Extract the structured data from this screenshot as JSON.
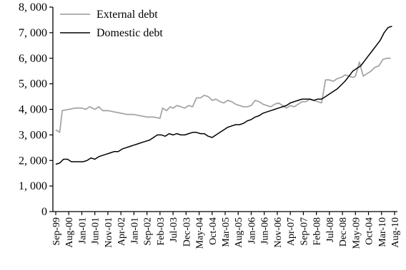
{
  "chart_data": {
    "type": "line",
    "title": "",
    "xlabel": "",
    "ylabel": "",
    "ylim": [
      0,
      8000
    ],
    "y_ticks": [
      "0",
      "1, 000",
      "2, 000",
      "3, 000",
      "4, 000",
      "5, 000",
      "6, 000",
      "7, 000",
      "8, 000"
    ],
    "x_ticks": [
      "Sep-99",
      "Aug-00",
      "Jan-01",
      "Jun-01",
      "Nov-01",
      "Apr-02",
      "Jan-01",
      "Sep-02",
      "Feb-03",
      "Jul-03",
      "Dec-03",
      "May-04",
      "Oct-04",
      "Mar-05",
      "Aug-05",
      "Jan-06",
      "Jun-06",
      "Nov-06",
      "Apr-07",
      "Sep-07",
      "Feb-08",
      "Jul-08",
      "Dec-08",
      "May-09",
      "Oct-04",
      "Mar-10",
      "Aug-10"
    ],
    "grid": false,
    "legend_position": "top-left",
    "series": [
      {
        "name": "External debt",
        "color": "#a6a6a6",
        "points": [
          [
            0,
            3200
          ],
          [
            0.3,
            3100
          ],
          [
            0.5,
            3950
          ],
          [
            1,
            4000
          ],
          [
            1.5,
            4050
          ],
          [
            2,
            4050
          ],
          [
            2.3,
            4000
          ],
          [
            2.6,
            4100
          ],
          [
            3,
            4000
          ],
          [
            3.3,
            4100
          ],
          [
            3.6,
            3950
          ],
          [
            4,
            3950
          ],
          [
            4.5,
            3900
          ],
          [
            5,
            3850
          ],
          [
            5.5,
            3800
          ],
          [
            6,
            3800
          ],
          [
            6.5,
            3750
          ],
          [
            7,
            3700
          ],
          [
            7.5,
            3700
          ],
          [
            8,
            3650
          ],
          [
            8.2,
            4050
          ],
          [
            8.5,
            3950
          ],
          [
            8.8,
            4100
          ],
          [
            9,
            4050
          ],
          [
            9.3,
            4150
          ],
          [
            9.6,
            4100
          ],
          [
            9.9,
            4050
          ],
          [
            10.2,
            4150
          ],
          [
            10.5,
            4100
          ],
          [
            10.8,
            4450
          ],
          [
            11.1,
            4450
          ],
          [
            11.4,
            4550
          ],
          [
            11.7,
            4500
          ],
          [
            12,
            4350
          ],
          [
            12.3,
            4400
          ],
          [
            12.6,
            4300
          ],
          [
            12.9,
            4250
          ],
          [
            13.2,
            4350
          ],
          [
            13.5,
            4300
          ],
          [
            13.8,
            4200
          ],
          [
            14.1,
            4150
          ],
          [
            14.4,
            4100
          ],
          [
            14.7,
            4100
          ],
          [
            15,
            4150
          ],
          [
            15.3,
            4350
          ],
          [
            15.6,
            4300
          ],
          [
            15.9,
            4200
          ],
          [
            16.2,
            4150
          ],
          [
            16.5,
            4100
          ],
          [
            16.8,
            4200
          ],
          [
            17.1,
            4250
          ],
          [
            17.4,
            4150
          ],
          [
            17.7,
            4050
          ],
          [
            18,
            4150
          ],
          [
            18.3,
            4100
          ],
          [
            18.6,
            4200
          ],
          [
            18.9,
            4300
          ],
          [
            19.2,
            4300
          ],
          [
            19.5,
            4400
          ],
          [
            19.8,
            4350
          ],
          [
            20.1,
            4300
          ],
          [
            20.4,
            4250
          ],
          [
            20.7,
            5150
          ],
          [
            21,
            5150
          ],
          [
            21.3,
            5100
          ],
          [
            21.6,
            5200
          ],
          [
            21.9,
            5250
          ],
          [
            22.2,
            5350
          ],
          [
            22.5,
            5300
          ],
          [
            22.8,
            5250
          ],
          [
            23,
            5300
          ],
          [
            23.3,
            5850
          ],
          [
            23.6,
            5300
          ],
          [
            23.9,
            5400
          ],
          [
            24.2,
            5500
          ],
          [
            24.5,
            5650
          ],
          [
            24.8,
            5700
          ],
          [
            25.1,
            5950
          ],
          [
            25.4,
            6000
          ],
          [
            25.7,
            6000
          ]
        ]
      },
      {
        "name": "Domestic debt",
        "color": "#000000",
        "points": [
          [
            0,
            1850
          ],
          [
            0.3,
            1900
          ],
          [
            0.6,
            2050
          ],
          [
            0.9,
            2050
          ],
          [
            1.2,
            1950
          ],
          [
            1.5,
            1950
          ],
          [
            1.8,
            1950
          ],
          [
            2.1,
            1950
          ],
          [
            2.4,
            2000
          ],
          [
            2.7,
            2100
          ],
          [
            3,
            2050
          ],
          [
            3.3,
            2150
          ],
          [
            3.6,
            2200
          ],
          [
            3.9,
            2250
          ],
          [
            4.2,
            2300
          ],
          [
            4.5,
            2350
          ],
          [
            4.8,
            2350
          ],
          [
            5.1,
            2450
          ],
          [
            5.4,
            2500
          ],
          [
            5.7,
            2550
          ],
          [
            6,
            2600
          ],
          [
            6.3,
            2650
          ],
          [
            6.6,
            2700
          ],
          [
            6.9,
            2750
          ],
          [
            7.2,
            2800
          ],
          [
            7.5,
            2900
          ],
          [
            7.8,
            3000
          ],
          [
            8.1,
            3000
          ],
          [
            8.4,
            2950
          ],
          [
            8.7,
            3050
          ],
          [
            9,
            3000
          ],
          [
            9.3,
            3050
          ],
          [
            9.6,
            3000
          ],
          [
            9.9,
            3000
          ],
          [
            10.2,
            3050
          ],
          [
            10.5,
            3100
          ],
          [
            10.8,
            3100
          ],
          [
            11.1,
            3050
          ],
          [
            11.4,
            3050
          ],
          [
            11.7,
            2950
          ],
          [
            12,
            2900
          ],
          [
            12.3,
            3000
          ],
          [
            12.6,
            3100
          ],
          [
            12.9,
            3200
          ],
          [
            13.2,
            3300
          ],
          [
            13.5,
            3350
          ],
          [
            13.8,
            3400
          ],
          [
            14.1,
            3400
          ],
          [
            14.4,
            3450
          ],
          [
            14.7,
            3550
          ],
          [
            15,
            3600
          ],
          [
            15.3,
            3700
          ],
          [
            15.6,
            3750
          ],
          [
            15.9,
            3850
          ],
          [
            16.2,
            3900
          ],
          [
            16.5,
            3950
          ],
          [
            16.8,
            4000
          ],
          [
            17.1,
            4050
          ],
          [
            17.4,
            4100
          ],
          [
            17.7,
            4150
          ],
          [
            18,
            4250
          ],
          [
            18.3,
            4300
          ],
          [
            18.6,
            4350
          ],
          [
            18.9,
            4400
          ],
          [
            19.2,
            4400
          ],
          [
            19.5,
            4400
          ],
          [
            19.8,
            4350
          ],
          [
            20.1,
            4400
          ],
          [
            20.4,
            4400
          ],
          [
            20.7,
            4500
          ],
          [
            21,
            4600
          ],
          [
            21.3,
            4700
          ],
          [
            21.6,
            4800
          ],
          [
            21.9,
            4950
          ],
          [
            22.2,
            5100
          ],
          [
            22.5,
            5300
          ],
          [
            22.8,
            5500
          ],
          [
            23.1,
            5600
          ],
          [
            23.4,
            5700
          ],
          [
            23.7,
            5900
          ],
          [
            24,
            6100
          ],
          [
            24.3,
            6300
          ],
          [
            24.6,
            6500
          ],
          [
            24.9,
            6700
          ],
          [
            25.2,
            7000
          ],
          [
            25.5,
            7200
          ],
          [
            25.8,
            7250
          ]
        ]
      }
    ]
  }
}
